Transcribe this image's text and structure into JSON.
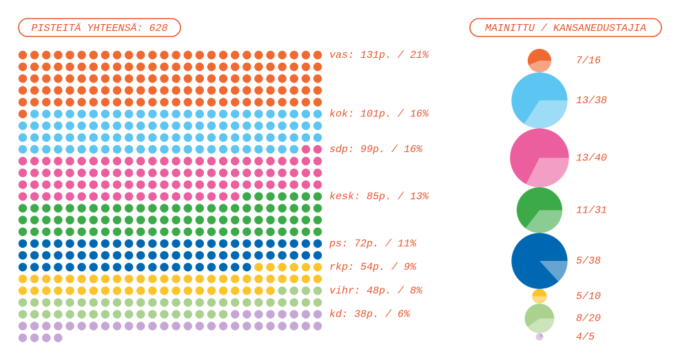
{
  "chart_data": [
    {
      "type": "waffle",
      "title": "PISTEITÄ YHTEENSÄ: 628",
      "values": [
        131,
        101,
        99,
        85,
        72,
        54,
        48,
        38
      ],
      "value_labels": [
        "vas: 131p. / 21%",
        "kok: 101p. / 16%",
        "sdp: 99p. / 16%",
        "kesk: 85p. / 13%",
        "ps: 72p. / 11%",
        "rkp: 54p. / 9%",
        "vihr: 48p. / 8%",
        "kd: 38p. / 6%"
      ],
      "colors": [
        "#ef6a32",
        "#5cc5f1",
        "#ec5f9e",
        "#3caa48",
        "#0068b2",
        "#fcc42b",
        "#aad190",
        "#c6a6d6"
      ]
    },
    {
      "type": "circles",
      "title": "MAINITTU / KANSANEDUSTAJIA",
      "values": [
        16,
        38,
        40,
        31,
        38,
        10,
        20,
        5
      ],
      "mentioned": [
        7,
        13,
        13,
        11,
        5,
        5,
        8,
        4
      ],
      "value_labels": [
        "7/16",
        "13/38",
        "13/40",
        "11/31",
        "5/38",
        "5/10",
        "8/20",
        "4/5"
      ],
      "colors": [
        "#ef6a32",
        "#5cc5f1",
        "#ec5f9e",
        "#3caa48",
        "#0068b2",
        "#fcc42b",
        "#aad190",
        "#c6a6d6"
      ]
    }
  ]
}
